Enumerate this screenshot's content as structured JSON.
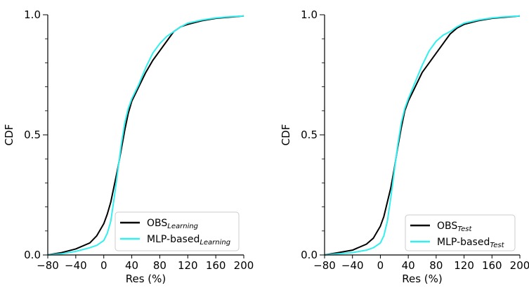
{
  "chart_data": [
    {
      "type": "line",
      "xlabel": "Res (%)",
      "ylabel": "CDF",
      "xlim": [
        -80,
        200
      ],
      "ylim": [
        0,
        1
      ],
      "xticks": [
        -80,
        -40,
        0,
        40,
        80,
        120,
        160,
        200
      ],
      "yticks": [
        0.0,
        0.5,
        1.0
      ],
      "ytick_labels": [
        "0.0",
        "0.5",
        "1.0"
      ],
      "grid": false,
      "legend": "bottom-right",
      "series": [
        {
          "name": "OBS",
          "name_sub": "Learning",
          "color": "#000000",
          "points": [
            [
              -80,
              0.0
            ],
            [
              -60,
              0.01
            ],
            [
              -40,
              0.025
            ],
            [
              -20,
              0.05
            ],
            [
              -10,
              0.08
            ],
            [
              0,
              0.13
            ],
            [
              5,
              0.17
            ],
            [
              10,
              0.22
            ],
            [
              15,
              0.29
            ],
            [
              20,
              0.36
            ],
            [
              25,
              0.44
            ],
            [
              30,
              0.52
            ],
            [
              35,
              0.59
            ],
            [
              40,
              0.64
            ],
            [
              50,
              0.7
            ],
            [
              60,
              0.76
            ],
            [
              70,
              0.81
            ],
            [
              80,
              0.85
            ],
            [
              90,
              0.89
            ],
            [
              100,
              0.93
            ],
            [
              110,
              0.95
            ],
            [
              120,
              0.96
            ],
            [
              140,
              0.975
            ],
            [
              160,
              0.985
            ],
            [
              180,
              0.99
            ],
            [
              200,
              0.995
            ]
          ]
        },
        {
          "name": "MLP-based",
          "name_sub": "Learning",
          "color": "#33f0f0",
          "points": [
            [
              -80,
              0.0
            ],
            [
              -60,
              0.005
            ],
            [
              -40,
              0.015
            ],
            [
              -20,
              0.03
            ],
            [
              -10,
              0.04
            ],
            [
              0,
              0.06
            ],
            [
              5,
              0.09
            ],
            [
              10,
              0.14
            ],
            [
              15,
              0.24
            ],
            [
              20,
              0.35
            ],
            [
              25,
              0.46
            ],
            [
              30,
              0.55
            ],
            [
              35,
              0.61
            ],
            [
              40,
              0.65
            ],
            [
              50,
              0.71
            ],
            [
              60,
              0.78
            ],
            [
              70,
              0.84
            ],
            [
              80,
              0.88
            ],
            [
              90,
              0.91
            ],
            [
              100,
              0.93
            ],
            [
              110,
              0.95
            ],
            [
              120,
              0.965
            ],
            [
              140,
              0.978
            ],
            [
              160,
              0.987
            ],
            [
              180,
              0.992
            ],
            [
              200,
              0.995
            ]
          ]
        }
      ]
    },
    {
      "type": "line",
      "xlabel": "Res (%)",
      "ylabel": "CDF",
      "xlim": [
        -80,
        200
      ],
      "ylim": [
        0,
        1
      ],
      "xticks": [
        -80,
        -40,
        0,
        40,
        80,
        120,
        160,
        200
      ],
      "yticks": [
        0.0,
        0.5,
        1.0
      ],
      "ytick_labels": [
        "0.0",
        "0.5",
        "1.0"
      ],
      "grid": false,
      "legend": "bottom-right",
      "series": [
        {
          "name": "OBS",
          "name_sub": "Test",
          "color": "#000000",
          "points": [
            [
              -80,
              0.0
            ],
            [
              -60,
              0.01
            ],
            [
              -40,
              0.02
            ],
            [
              -20,
              0.045
            ],
            [
              -10,
              0.07
            ],
            [
              0,
              0.12
            ],
            [
              5,
              0.16
            ],
            [
              10,
              0.22
            ],
            [
              15,
              0.28
            ],
            [
              20,
              0.36
            ],
            [
              25,
              0.45
            ],
            [
              30,
              0.53
            ],
            [
              35,
              0.6
            ],
            [
              40,
              0.64
            ],
            [
              50,
              0.7
            ],
            [
              60,
              0.76
            ],
            [
              70,
              0.8
            ],
            [
              80,
              0.84
            ],
            [
              90,
              0.88
            ],
            [
              100,
              0.92
            ],
            [
              110,
              0.945
            ],
            [
              120,
              0.96
            ],
            [
              140,
              0.975
            ],
            [
              160,
              0.985
            ],
            [
              180,
              0.99
            ],
            [
              200,
              0.995
            ]
          ]
        },
        {
          "name": "MLP-based",
          "name_sub": "Test",
          "color": "#33f0f0",
          "points": [
            [
              -80,
              0.0
            ],
            [
              -60,
              0.005
            ],
            [
              -40,
              0.01
            ],
            [
              -20,
              0.02
            ],
            [
              -10,
              0.03
            ],
            [
              0,
              0.05
            ],
            [
              5,
              0.08
            ],
            [
              10,
              0.14
            ],
            [
              15,
              0.24
            ],
            [
              20,
              0.35
            ],
            [
              25,
              0.46
            ],
            [
              30,
              0.55
            ],
            [
              35,
              0.61
            ],
            [
              40,
              0.65
            ],
            [
              50,
              0.72
            ],
            [
              60,
              0.79
            ],
            [
              70,
              0.85
            ],
            [
              80,
              0.89
            ],
            [
              90,
              0.915
            ],
            [
              100,
              0.93
            ],
            [
              110,
              0.95
            ],
            [
              120,
              0.965
            ],
            [
              140,
              0.978
            ],
            [
              160,
              0.987
            ],
            [
              180,
              0.992
            ],
            [
              200,
              0.995
            ]
          ]
        }
      ]
    }
  ]
}
